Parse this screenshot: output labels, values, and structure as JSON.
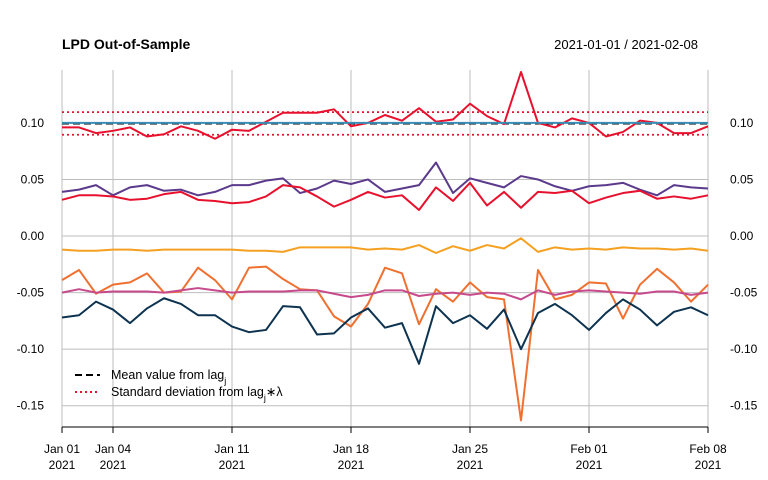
{
  "chart_data": {
    "type": "line",
    "title": "LPD Out-of-Sample",
    "date_range": "2021-01-01 / 2021-02-08",
    "x_start": "2021-01-01",
    "x_end": "2021-02-08",
    "xticks": [
      {
        "date": "2021-01-01",
        "label1": "Jan 01",
        "label2": "2021"
      },
      {
        "date": "2021-01-04",
        "label1": "Jan 04",
        "label2": "2021"
      },
      {
        "date": "2021-01-11",
        "label1": "Jan 11",
        "label2": "2021"
      },
      {
        "date": "2021-01-18",
        "label1": "Jan 18",
        "label2": "2021"
      },
      {
        "date": "2021-01-25",
        "label1": "Jan 25",
        "label2": "2021"
      },
      {
        "date": "2021-02-01",
        "label1": "Feb 01",
        "label2": "2021"
      },
      {
        "date": "2021-02-08",
        "label1": "Feb 08",
        "label2": "2021"
      }
    ],
    "ylim": [
      -0.175,
      0.145
    ],
    "yticks": [
      0.1,
      0.05,
      0.0,
      -0.05,
      -0.1,
      -0.15
    ],
    "ytick_labels": [
      "0.10",
      "0.05",
      "0.00",
      "-0.05",
      "-0.10",
      "-0.15"
    ],
    "grid": true,
    "legend_position": "bottom-left",
    "legend": [
      {
        "text": "Mean value from lag",
        "sub": "j",
        "after": "",
        "style": "dashed",
        "color": "#000000"
      },
      {
        "text": "Standard deviation from lag",
        "sub": "j",
        "after": "∗λ",
        "style": "dotted",
        "color": "#E8112D"
      }
    ],
    "hlines": [
      {
        "y": 0.0995,
        "color": "#000000",
        "style": "dashed"
      },
      {
        "y": 0.1095,
        "color": "#E8112D",
        "style": "dotted"
      },
      {
        "y": 0.0895,
        "color": "#E8112D",
        "style": "dotted"
      }
    ],
    "series": [
      {
        "color": "#E8112D",
        "values": [
          0.096,
          0.096,
          0.091,
          0.093,
          0.096,
          0.088,
          0.09,
          0.097,
          0.093,
          0.086,
          0.094,
          0.093,
          0.101,
          0.109,
          0.109,
          0.109,
          0.112,
          0.097,
          0.1,
          0.107,
          0.102,
          0.113,
          0.101,
          0.103,
          0.117,
          0.106,
          0.099,
          0.145,
          0.1,
          0.096,
          0.104,
          0.1,
          0.088,
          0.092,
          0.102,
          0.1,
          0.091,
          0.091,
          0.097
        ]
      },
      {
        "color": "#3A8FB7",
        "values": [
          0.1,
          0.1,
          0.1,
          0.1,
          0.1,
          0.1,
          0.1,
          0.1,
          0.1,
          0.1,
          0.1,
          0.1,
          0.1,
          0.1,
          0.1,
          0.1,
          0.1,
          0.1,
          0.1,
          0.1,
          0.1,
          0.1,
          0.1,
          0.1,
          0.1,
          0.1,
          0.1,
          0.1,
          0.1,
          0.1,
          0.1,
          0.1,
          0.1,
          0.1,
          0.1,
          0.1,
          0.1,
          0.1,
          0.1
        ]
      },
      {
        "color": "#5B3A8C",
        "values": [
          0.039,
          0.041,
          0.045,
          0.036,
          0.043,
          0.045,
          0.04,
          0.041,
          0.036,
          0.039,
          0.045,
          0.045,
          0.049,
          0.051,
          0.038,
          0.042,
          0.049,
          0.046,
          0.05,
          0.039,
          0.042,
          0.045,
          0.065,
          0.038,
          0.051,
          0.047,
          0.043,
          0.053,
          0.05,
          0.044,
          0.04,
          0.044,
          0.045,
          0.047,
          0.041,
          0.036,
          0.045,
          0.043,
          0.042
        ]
      },
      {
        "color": "#E8112D",
        "values": [
          0.032,
          0.036,
          0.036,
          0.035,
          0.032,
          0.033,
          0.037,
          0.039,
          0.032,
          0.031,
          0.029,
          0.03,
          0.035,
          0.045,
          0.043,
          0.035,
          0.026,
          0.032,
          0.039,
          0.034,
          0.036,
          0.023,
          0.043,
          0.031,
          0.047,
          0.027,
          0.039,
          0.025,
          0.039,
          0.038,
          0.04,
          0.029,
          0.034,
          0.038,
          0.04,
          0.033,
          0.035,
          0.033,
          0.036
        ]
      },
      {
        "color": "#F5A020",
        "values": [
          -0.012,
          -0.013,
          -0.013,
          -0.012,
          -0.012,
          -0.013,
          -0.012,
          -0.012,
          -0.012,
          -0.012,
          -0.012,
          -0.013,
          -0.013,
          -0.014,
          -0.01,
          -0.01,
          -0.01,
          -0.01,
          -0.012,
          -0.011,
          -0.012,
          -0.008,
          -0.015,
          -0.009,
          -0.013,
          -0.008,
          -0.011,
          -0.002,
          -0.014,
          -0.01,
          -0.012,
          -0.011,
          -0.012,
          -0.01,
          -0.011,
          -0.011,
          -0.012,
          -0.011,
          -0.013
        ]
      },
      {
        "color": "#F07030",
        "values": [
          -0.039,
          -0.03,
          -0.051,
          -0.043,
          -0.041,
          -0.033,
          -0.05,
          -0.049,
          -0.028,
          -0.039,
          -0.056,
          -0.028,
          -0.027,
          -0.038,
          -0.047,
          -0.048,
          -0.071,
          -0.08,
          -0.06,
          -0.028,
          -0.033,
          -0.078,
          -0.047,
          -0.058,
          -0.041,
          -0.054,
          -0.056,
          -0.163,
          -0.03,
          -0.056,
          -0.052,
          -0.041,
          -0.042,
          -0.073,
          -0.043,
          -0.029,
          -0.041,
          -0.058,
          -0.043
        ]
      },
      {
        "color": "#C64A8C",
        "values": [
          -0.05,
          -0.047,
          -0.05,
          -0.049,
          -0.049,
          -0.049,
          -0.05,
          -0.048,
          -0.046,
          -0.048,
          -0.05,
          -0.049,
          -0.049,
          -0.049,
          -0.048,
          -0.048,
          -0.051,
          -0.054,
          -0.052,
          -0.048,
          -0.048,
          -0.053,
          -0.051,
          -0.05,
          -0.052,
          -0.05,
          -0.051,
          -0.056,
          -0.048,
          -0.052,
          -0.049,
          -0.048,
          -0.049,
          -0.05,
          -0.051,
          -0.049,
          -0.049,
          -0.052,
          -0.05
        ]
      },
      {
        "color": "#0D3350",
        "values": [
          -0.072,
          -0.07,
          -0.058,
          -0.065,
          -0.077,
          -0.064,
          -0.055,
          -0.06,
          -0.07,
          -0.07,
          -0.08,
          -0.085,
          -0.083,
          -0.062,
          -0.063,
          -0.087,
          -0.086,
          -0.072,
          -0.064,
          -0.081,
          -0.077,
          -0.113,
          -0.062,
          -0.077,
          -0.07,
          -0.082,
          -0.065,
          -0.1,
          -0.068,
          -0.06,
          -0.07,
          -0.083,
          -0.068,
          -0.056,
          -0.065,
          -0.079,
          -0.067,
          -0.063,
          -0.07
        ]
      }
    ]
  }
}
